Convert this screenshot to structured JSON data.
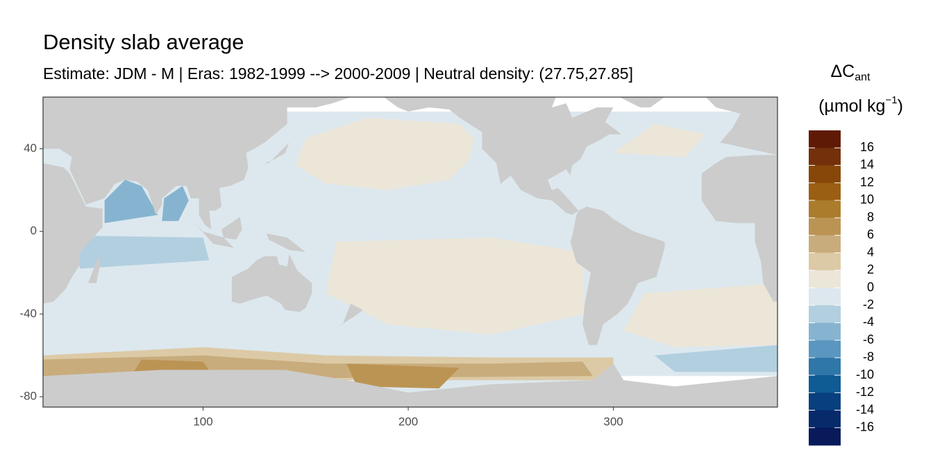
{
  "chart_data": {
    "type": "map",
    "title": "Density slab average",
    "subtitle": "Estimate: JDM - M | Eras: 1982-1999 --> 2000-2009 | Neutral density: (27.75,27.85]",
    "xlim": [
      22,
      380
    ],
    "ylim": [
      -85,
      65
    ],
    "xticks": [
      100,
      200,
      300
    ],
    "yticks": [
      40,
      0,
      -40,
      -80
    ],
    "land_color": "#cccccc",
    "legend": {
      "title": "ΔC",
      "title_sub": "ant",
      "unit": "(µmol kg",
      "unit_sup": "−1",
      "unit_end": ")",
      "colorbar_lim": [
        -18,
        18
      ],
      "breaks": [
        16,
        14,
        12,
        10,
        8,
        6,
        4,
        2,
        0,
        -2,
        -4,
        -6,
        -8,
        -10,
        -12,
        -14,
        -16
      ],
      "colors": [
        "#5f1a06",
        "#74300a",
        "#874709",
        "#9a5f12",
        "#ab7c2c",
        "#bb9454",
        "#c9ac7c",
        "#dccaa6",
        "#ece6d9",
        "#dde8ee",
        "#b2cfe0",
        "#86b4d0",
        "#5a96bf",
        "#2f77a9",
        "#0f5b94",
        "#083f7e",
        "#072a6b",
        "#081a5a"
      ]
    }
  }
}
